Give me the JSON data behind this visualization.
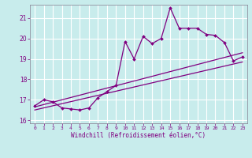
{
  "xlabel": "Windchill (Refroidissement éolien,°C)",
  "bg_color": "#c8ecec",
  "grid_color": "#ffffff",
  "line_color": "#800080",
  "spine_color": "#9090a0",
  "xlim": [
    -0.5,
    23.5
  ],
  "ylim": [
    15.85,
    21.65
  ],
  "yticks": [
    16,
    17,
    18,
    19,
    20,
    21
  ],
  "xticks": [
    0,
    1,
    2,
    3,
    4,
    5,
    6,
    7,
    8,
    9,
    10,
    11,
    12,
    13,
    14,
    15,
    16,
    17,
    18,
    19,
    20,
    21,
    22,
    23
  ],
  "series1_x": [
    0,
    1,
    2,
    3,
    4,
    5,
    6,
    7,
    8,
    9,
    10,
    11,
    12,
    13,
    14,
    15,
    16,
    17,
    18,
    19,
    20,
    21,
    22,
    23
  ],
  "series1_y": [
    16.7,
    17.0,
    16.9,
    16.6,
    16.55,
    16.5,
    16.6,
    17.1,
    17.4,
    17.7,
    19.85,
    19.0,
    20.1,
    19.75,
    20.0,
    21.5,
    20.5,
    20.5,
    20.5,
    20.2,
    20.15,
    19.8,
    18.9,
    19.1
  ],
  "trend1_x": [
    0,
    23
  ],
  "trend1_y": [
    16.65,
    19.3
  ],
  "trend2_x": [
    0,
    23
  ],
  "trend2_y": [
    16.5,
    18.85
  ]
}
